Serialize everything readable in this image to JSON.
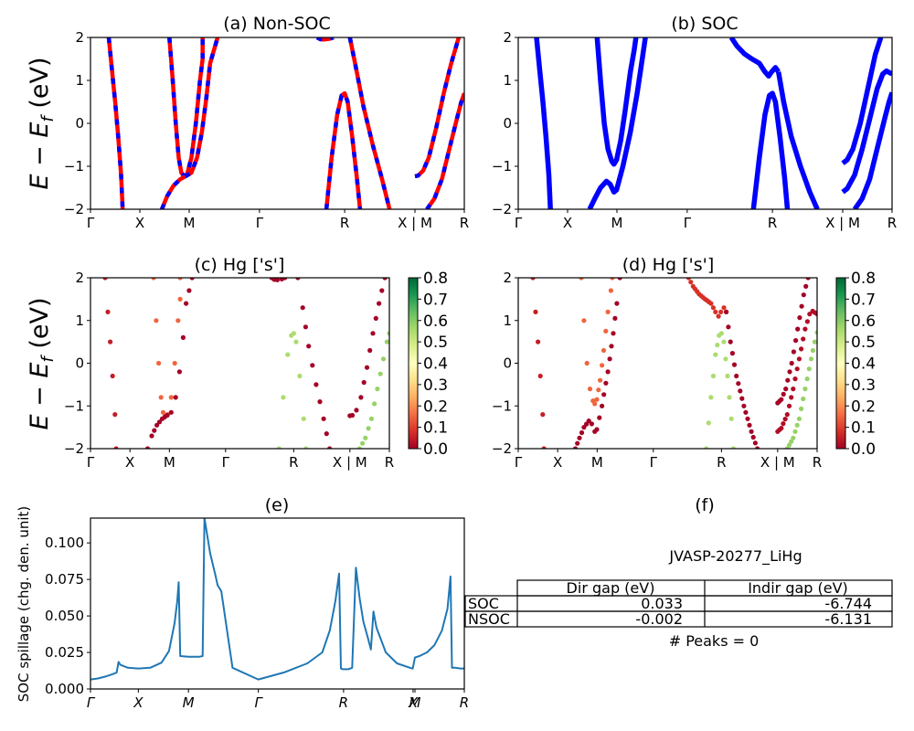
{
  "figure": {
    "material_id": "JVASP-20277_LiHg",
    "peaks_text": "# Peaks = 0"
  },
  "chart_data": [
    {
      "id": "a",
      "type": "line",
      "title": "(a) Non-SOC",
      "ylabel": "E − E_f (eV)",
      "ylabel_main": "E − E",
      "ylabel_sub": "f",
      "ylabel_unit": " (eV)",
      "ylim": [
        -2,
        2
      ],
      "yticks": [
        -2,
        -1,
        0,
        1,
        2
      ],
      "ytick_labels": [
        "−2",
        "−1",
        "0",
        "1",
        "2"
      ],
      "xtick_positions": [
        0,
        0.132,
        0.264,
        0.452,
        0.68,
        0.868,
        1.0
      ],
      "xtick_labels": [
        "Γ",
        "X",
        "M",
        "Γ",
        "R",
        "X | M",
        "R"
      ],
      "series_style": "red line overlaid with blue dashes (spin up / spin down identical)",
      "colors": {
        "solid": "#ff0000",
        "dash": "#0000ff"
      },
      "bands": [
        [
          [
            0.049,
            2.0
          ],
          [
            0.058,
            1.2
          ],
          [
            0.066,
            0.5
          ],
          [
            0.074,
            -0.3
          ],
          [
            0.082,
            -1.2
          ],
          [
            0.086,
            -2.0
          ]
        ],
        [
          [
            0.211,
            2.0
          ],
          [
            0.22,
            1.0
          ],
          [
            0.228,
            0.0
          ],
          [
            0.236,
            -0.8
          ],
          [
            0.243,
            -1.15
          ],
          [
            0.25,
            -1.22
          ],
          [
            0.258,
            -1.2
          ],
          [
            0.27,
            -0.8
          ],
          [
            0.282,
            0.0
          ],
          [
            0.293,
            1.0
          ],
          [
            0.3,
            1.5
          ],
          [
            0.3,
            2.0
          ]
        ],
        [
          [
            0.191,
            -2.0
          ],
          [
            0.205,
            -1.7
          ],
          [
            0.222,
            -1.45
          ],
          [
            0.24,
            -1.3
          ],
          [
            0.257,
            -1.22
          ],
          [
            0.27,
            -1.15
          ],
          [
            0.285,
            -0.8
          ],
          [
            0.298,
            -0.2
          ],
          [
            0.31,
            0.6
          ],
          [
            0.32,
            1.4
          ],
          [
            0.34,
            2.0
          ]
        ],
        [
          [
            0.606,
            2.0
          ],
          [
            0.615,
            1.96
          ],
          [
            0.625,
            1.95
          ],
          [
            0.64,
            1.97
          ],
          [
            0.65,
            2.0
          ]
        ],
        [
          [
            0.631,
            -2.0
          ],
          [
            0.645,
            -0.8
          ],
          [
            0.66,
            0.2
          ],
          [
            0.672,
            0.65
          ],
          [
            0.68,
            0.7
          ],
          [
            0.688,
            0.5
          ],
          [
            0.7,
            -0.3
          ],
          [
            0.713,
            -1.3
          ],
          [
            0.721,
            -2.0
          ]
        ],
        [
          [
            0.694,
            2.0
          ],
          [
            0.71,
            1.3
          ],
          [
            0.73,
            0.4
          ],
          [
            0.755,
            -0.5
          ],
          [
            0.78,
            -1.3
          ],
          [
            0.8,
            -2.0
          ]
        ],
        [
          [
            0.868,
            -1.23
          ],
          [
            0.876,
            -1.22
          ],
          [
            0.89,
            -1.1
          ],
          [
            0.905,
            -0.8
          ],
          [
            0.925,
            -0.1
          ],
          [
            0.945,
            0.7
          ],
          [
            0.965,
            1.4
          ],
          [
            0.985,
            2.0
          ]
        ],
        [
          [
            0.9,
            -2.0
          ],
          [
            0.92,
            -1.75
          ],
          [
            0.94,
            -1.3
          ],
          [
            0.96,
            -0.6
          ],
          [
            0.98,
            0.1
          ],
          [
            0.992,
            0.5
          ],
          [
            1.0,
            0.7
          ]
        ]
      ]
    },
    {
      "id": "b",
      "type": "line",
      "title": "(b) SOC",
      "ylim": [
        -2,
        2
      ],
      "yticks": [
        -2,
        -1,
        0,
        1,
        2
      ],
      "ytick_labels": [
        "−2",
        "−1",
        "0",
        "1",
        "2"
      ],
      "xtick_positions": [
        0,
        0.132,
        0.264,
        0.452,
        0.68,
        0.868,
        1.0
      ],
      "xtick_labels": [
        "Γ",
        "X",
        "M",
        "Γ",
        "R",
        "X | M",
        "R"
      ],
      "colors": {
        "line": "#0000ff"
      },
      "bands": [
        [
          [
            0.049,
            2.0
          ],
          [
            0.058,
            1.2
          ],
          [
            0.066,
            0.5
          ],
          [
            0.074,
            -0.3
          ],
          [
            0.082,
            -1.2
          ],
          [
            0.086,
            -2.0
          ]
        ],
        [
          [
            0.211,
            2.0
          ],
          [
            0.22,
            1.0
          ],
          [
            0.23,
            0.0
          ],
          [
            0.24,
            -0.6
          ],
          [
            0.25,
            -0.88
          ],
          [
            0.256,
            -0.95
          ],
          [
            0.263,
            -0.85
          ],
          [
            0.274,
            -0.4
          ],
          [
            0.286,
            0.3
          ],
          [
            0.3,
            1.2
          ],
          [
            0.31,
            1.7
          ],
          [
            0.315,
            2.0
          ]
        ],
        [
          [
            0.191,
            -2.0
          ],
          [
            0.205,
            -1.75
          ],
          [
            0.22,
            -1.5
          ],
          [
            0.236,
            -1.35
          ],
          [
            0.246,
            -1.42
          ],
          [
            0.256,
            -1.6
          ],
          [
            0.263,
            -1.55
          ],
          [
            0.28,
            -1.0
          ],
          [
            0.3,
            -0.2
          ],
          [
            0.318,
            0.7
          ],
          [
            0.33,
            1.4
          ],
          [
            0.34,
            2.0
          ]
        ],
        [
          [
            0.57,
            2.0
          ],
          [
            0.585,
            1.8
          ],
          [
            0.605,
            1.62
          ],
          [
            0.625,
            1.5
          ],
          [
            0.645,
            1.4
          ],
          [
            0.66,
            1.2
          ],
          [
            0.67,
            1.1
          ],
          [
            0.678,
            1.2
          ],
          [
            0.688,
            1.3
          ],
          [
            0.696,
            1.2
          ]
        ],
        [
          [
            0.629,
            -2.0
          ],
          [
            0.645,
            -0.8
          ],
          [
            0.66,
            0.2
          ],
          [
            0.672,
            0.65
          ],
          [
            0.68,
            0.7
          ],
          [
            0.688,
            0.5
          ],
          [
            0.7,
            -0.3
          ],
          [
            0.713,
            -1.3
          ],
          [
            0.72,
            -2.0
          ]
        ],
        [
          [
            0.696,
            1.2
          ],
          [
            0.71,
            0.5
          ],
          [
            0.73,
            -0.3
          ],
          [
            0.755,
            -1.0
          ],
          [
            0.78,
            -1.6
          ],
          [
            0.8,
            -2.0
          ]
        ],
        [
          [
            0.868,
            -0.93
          ],
          [
            0.88,
            -0.85
          ],
          [
            0.895,
            -0.6
          ],
          [
            0.915,
            0.0
          ],
          [
            0.935,
            0.8
          ],
          [
            0.955,
            1.6
          ],
          [
            0.97,
            2.0
          ]
        ],
        [
          [
            0.868,
            -1.6
          ],
          [
            0.88,
            -1.52
          ],
          [
            0.9,
            -1.2
          ],
          [
            0.92,
            -0.6
          ],
          [
            0.94,
            0.1
          ],
          [
            0.96,
            0.8
          ],
          [
            0.975,
            1.15
          ],
          [
            0.985,
            1.22
          ],
          [
            1.0,
            1.15
          ]
        ],
        [
          [
            0.9,
            -2.0
          ],
          [
            0.92,
            -1.75
          ],
          [
            0.94,
            -1.3
          ],
          [
            0.96,
            -0.6
          ],
          [
            0.98,
            0.1
          ],
          [
            0.992,
            0.5
          ],
          [
            1.0,
            0.72
          ]
        ]
      ]
    },
    {
      "id": "c",
      "type": "scatter",
      "title": "(c)  Hg ['s']",
      "ylim": [
        -2,
        2
      ],
      "yticks": [
        -2,
        -1,
        0,
        1,
        2
      ],
      "ytick_labels": [
        "−2",
        "−1",
        "0",
        "1",
        "2"
      ],
      "xtick_positions": [
        0,
        0.132,
        0.264,
        0.452,
        0.68,
        0.868,
        1.0
      ],
      "xtick_labels": [
        "Γ",
        "X",
        "M",
        "Γ",
        "R",
        "X | M",
        "R"
      ],
      "colorbar": {
        "cmap": "RdYlGn",
        "range": [
          0.0,
          0.8
        ],
        "ticks": [
          "0.0",
          "0.1",
          "0.2",
          "0.3",
          "0.4",
          "0.5",
          "0.6",
          "0.7",
          "0.8"
        ]
      },
      "weights_by_band": [
        0.05,
        0.15,
        0.0,
        0.0,
        0.55,
        0.0,
        0.0,
        0.58
      ]
    },
    {
      "id": "d",
      "type": "scatter",
      "title": "(d) Hg ['s']",
      "ylim": [
        -2,
        2
      ],
      "yticks": [
        -2,
        -1,
        0,
        1,
        2
      ],
      "ytick_labels": [
        "−2",
        "−1",
        "0",
        "1",
        "2"
      ],
      "xtick_positions": [
        0,
        0.132,
        0.264,
        0.452,
        0.68,
        0.868,
        1.0
      ],
      "xtick_labels": [
        "Γ",
        "X",
        "M",
        "Γ",
        "R",
        "X | M",
        "R"
      ],
      "colorbar": {
        "cmap": "RdYlGn",
        "range": [
          0.0,
          0.8
        ],
        "ticks": [
          "0.0",
          "0.1",
          "0.2",
          "0.3",
          "0.4",
          "0.5",
          "0.6",
          "0.7",
          "0.8"
        ]
      },
      "weights_by_band": [
        0.05,
        0.15,
        0.0,
        0.08,
        0.55,
        0.0,
        0.0,
        0.02,
        0.58
      ]
    },
    {
      "id": "e",
      "type": "line",
      "title": "(e)",
      "ylabel": "SOC spillage (chg. den. unit)",
      "ylim": [
        0,
        0.117
      ],
      "yticks": [
        0.0,
        0.025,
        0.05,
        0.075,
        0.1
      ],
      "ytick_labels": [
        "0.000",
        "0.025",
        "0.050",
        "0.075",
        "0.100"
      ],
      "xtick_positions": [
        0,
        0.128,
        0.262,
        0.449,
        0.677,
        0.863,
        0.868,
        1.0
      ],
      "xtick_labels": [
        "Γ",
        "X",
        "M",
        "Γ",
        "R",
        "X",
        "M",
        "R"
      ],
      "color": "#1f77b4",
      "x": [
        0,
        0.02,
        0.04,
        0.06,
        0.07,
        0.075,
        0.08,
        0.1,
        0.128,
        0.16,
        0.19,
        0.21,
        0.225,
        0.232,
        0.236,
        0.24,
        0.262,
        0.29,
        0.3,
        0.305,
        0.32,
        0.335,
        0.34,
        0.35,
        0.38,
        0.449,
        0.52,
        0.58,
        0.62,
        0.64,
        0.655,
        0.665,
        0.67,
        0.675,
        0.69,
        0.7,
        0.71,
        0.72,
        0.73,
        0.742,
        0.75,
        0.757,
        0.765,
        0.79,
        0.82,
        0.86,
        0.862,
        0.868,
        0.88,
        0.9,
        0.92,
        0.94,
        0.955,
        0.963,
        0.967,
        0.975,
        0.99,
        1.0
      ],
      "y": [
        0.0065,
        0.0072,
        0.0085,
        0.0102,
        0.0112,
        0.0185,
        0.0165,
        0.0145,
        0.014,
        0.0145,
        0.018,
        0.026,
        0.045,
        0.06,
        0.073,
        0.0225,
        0.022,
        0.022,
        0.0225,
        0.117,
        0.093,
        0.077,
        0.071,
        0.067,
        0.0145,
        0.0065,
        0.0115,
        0.0175,
        0.025,
        0.04,
        0.06,
        0.079,
        0.014,
        0.0135,
        0.0135,
        0.0145,
        0.083,
        0.062,
        0.046,
        0.035,
        0.027,
        0.053,
        0.042,
        0.025,
        0.0175,
        0.014,
        0.014,
        0.0215,
        0.0225,
        0.025,
        0.03,
        0.04,
        0.055,
        0.077,
        0.0145,
        0.0145,
        0.014,
        0.014
      ]
    },
    {
      "id": "f",
      "type": "table",
      "title": "(f)",
      "caption": "JVASP-20277_LiHg",
      "columns": [
        "Dir gap (eV)",
        "Indir gap (eV)"
      ],
      "rows": [
        {
          "label": "SOC",
          "values": [
            "0.033",
            "-6.744"
          ]
        },
        {
          "label": "NSOC",
          "values": [
            "-0.002",
            "-6.131"
          ]
        }
      ],
      "footer": "# Peaks = 0"
    }
  ]
}
